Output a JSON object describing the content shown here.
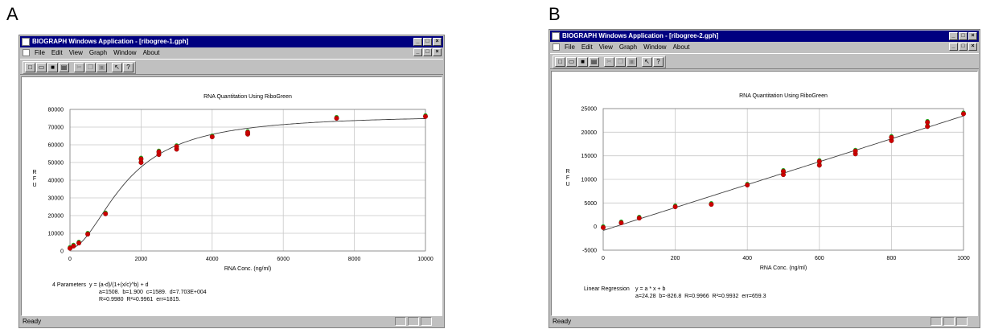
{
  "panels": [
    {
      "letter": "A",
      "window_title": "BIOGRAPH Windows Application - [ribogree-1.gph]",
      "menu": [
        "File",
        "Edit",
        "View",
        "Graph",
        "Window",
        "About"
      ],
      "status": "Ready",
      "chart_data": {
        "type": "scatter",
        "title": "RNA Quantitation Using RiboGreen",
        "xlabel": "RNA Conc. (ng/ml)",
        "ylabel": "R F U",
        "xlim": [
          0,
          10000
        ],
        "ylim": [
          0,
          80000
        ],
        "x_ticks": [
          "0",
          "2000",
          "4000",
          "6000",
          "8000",
          "10000"
        ],
        "y_ticks": [
          "0",
          "10000",
          "20000",
          "30000",
          "40000",
          "50000",
          "60000",
          "70000",
          "80000"
        ],
        "grid": true,
        "fit": "4-parameter logistic",
        "fit_params": {
          "a": 1508,
          "b": 1.9,
          "c": 1589,
          "d": 77030
        },
        "points": [
          {
            "x": 0,
            "y": 1500
          },
          {
            "x": 100,
            "y": 2800
          },
          {
            "x": 250,
            "y": 4500
          },
          {
            "x": 500,
            "y": 9500
          },
          {
            "x": 1000,
            "y": 21000
          },
          {
            "x": 2000,
            "y": 50000
          },
          {
            "x": 2000,
            "y": 52000
          },
          {
            "x": 2500,
            "y": 54500
          },
          {
            "x": 2500,
            "y": 56000
          },
          {
            "x": 3000,
            "y": 57500
          },
          {
            "x": 3000,
            "y": 59000
          },
          {
            "x": 4000,
            "y": 64500
          },
          {
            "x": 5000,
            "y": 66000
          },
          {
            "x": 5000,
            "y": 67000
          },
          {
            "x": 7500,
            "y": 75000
          },
          {
            "x": 10000,
            "y": 76000
          }
        ],
        "annotation_label": "4 Parameters",
        "annotation_lines": [
          "y = (a-d)/(1+(x/c)^b) + d",
          "a=1508.  b=1.900  c=1589.  d=7.703E+004",
          "R=0.9980  R²=0.9961  err=1815."
        ]
      }
    },
    {
      "letter": "B",
      "window_title": "BIOGRAPH Windows Application - [ribogree-2.gph]",
      "menu": [
        "File",
        "Edit",
        "View",
        "Graph",
        "Window",
        "About"
      ],
      "status": "Ready",
      "chart_data": {
        "type": "scatter",
        "title": "RNA Quantitation Using RiboGreen",
        "xlabel": "RNA Conc. (ng/ml)",
        "ylabel": "R F U",
        "xlim": [
          0,
          1000
        ],
        "ylim": [
          -5000,
          25000
        ],
        "x_ticks": [
          "0",
          "200",
          "400",
          "600",
          "800",
          "1000"
        ],
        "y_ticks": [
          "-5000",
          "0",
          "5000",
          "10000",
          "15000",
          "20000",
          "25000"
        ],
        "grid": true,
        "fit": "linear",
        "fit_params": {
          "a": 24.28,
          "b": -826.8
        },
        "points": [
          {
            "x": 0,
            "y": -200
          },
          {
            "x": 50,
            "y": 800
          },
          {
            "x": 100,
            "y": 1800
          },
          {
            "x": 200,
            "y": 4200
          },
          {
            "x": 300,
            "y": 4700
          },
          {
            "x": 400,
            "y": 8800
          },
          {
            "x": 500,
            "y": 11000
          },
          {
            "x": 500,
            "y": 11700
          },
          {
            "x": 600,
            "y": 13000
          },
          {
            "x": 600,
            "y": 13800
          },
          {
            "x": 700,
            "y": 15400
          },
          {
            "x": 700,
            "y": 16000
          },
          {
            "x": 800,
            "y": 18200
          },
          {
            "x": 800,
            "y": 18900
          },
          {
            "x": 900,
            "y": 21200
          },
          {
            "x": 900,
            "y": 22100
          },
          {
            "x": 1000,
            "y": 23900
          }
        ],
        "annotation_label": "Linear Regression",
        "annotation_lines": [
          "y = a * x + b",
          "a=24.28  b=-826.8  R=0.9966  R²=0.9932  err=659.3"
        ]
      }
    }
  ],
  "colors": {
    "titlebar": "#000080",
    "face": "#c0c0c0",
    "point_fill": "#cc0000",
    "point_alt": "#22aa22",
    "curve": "#404040",
    "grid": "#c8c8c8"
  }
}
